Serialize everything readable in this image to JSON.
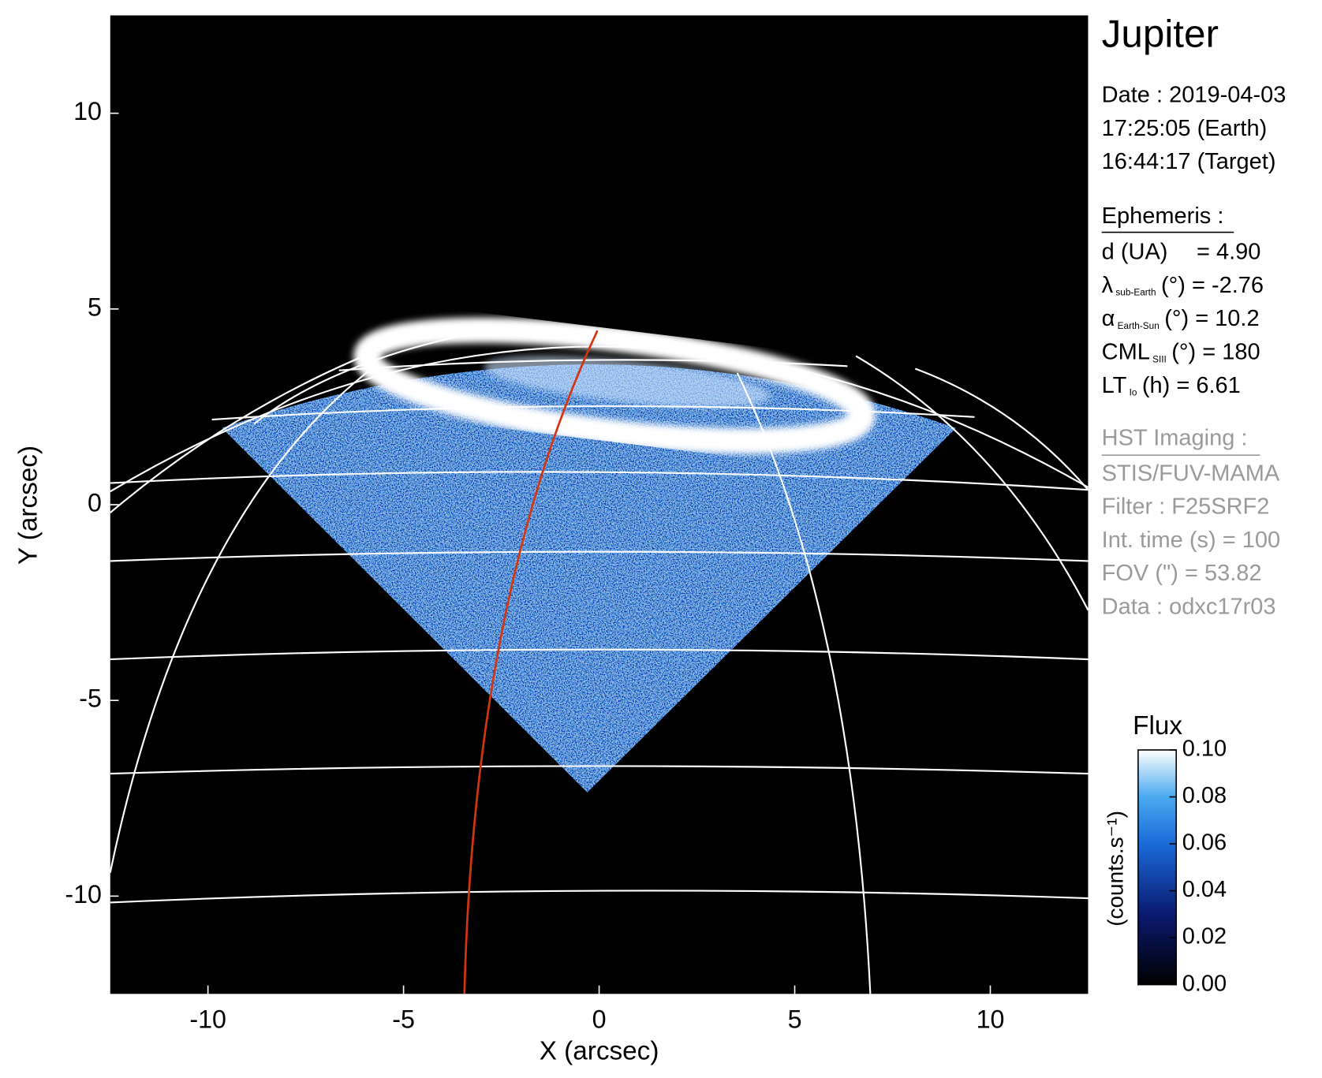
{
  "chart_data": {
    "type": "image",
    "title": "Jupiter",
    "xlabel": "X (arcsec)",
    "ylabel": "Y (arcsec)",
    "xlim": [
      -12.5,
      12.5
    ],
    "ylim": [
      -12.5,
      12.5
    ],
    "xticks": [
      -10,
      -5,
      0,
      5,
      10
    ],
    "yticks": [
      -10,
      -5,
      0,
      5,
      10
    ],
    "colorbar": {
      "title": "Flux",
      "label": "(counts.s⁻¹)",
      "lim": [
        0,
        0.1
      ],
      "ticks": [
        {
          "value": 0,
          "label": "0.00"
        },
        {
          "value": 0.02,
          "label": "0.02"
        },
        {
          "value": 0.04,
          "label": "0.04"
        },
        {
          "value": 0.06,
          "label": "0.06"
        },
        {
          "value": 0.08,
          "label": "0.08"
        },
        {
          "value": 0.1,
          "label": "0.10"
        }
      ]
    },
    "info": {
      "date": "Date : 2019-04-03",
      "earth_time": "17:25:05 (Earth)",
      "target_time": "16:44:17 (Target)",
      "ephemeris_title": "Ephemeris :",
      "ephemeris": [
        {
          "name": "d (UA)",
          "rest": "= 4.90"
        },
        {
          "name": "λ",
          "sub": "sub-Earth",
          "rest": "(°) = -2.76"
        },
        {
          "name": "α",
          "sub": "Earth-Sun",
          "rest": "(°) = 10.2"
        },
        {
          "name": "CML",
          "sub": "SIII",
          "rest": "(°) = 180"
        },
        {
          "name": "LT",
          "sub": "Io",
          "rest": "(h) = 6.61"
        }
      ],
      "hst_title": "HST Imaging :",
      "hst": [
        "STIS/FUV-MAMA",
        "Filter : F25SRF2",
        "Int. time (s) = 100",
        "FOV (\") = 53.82",
        "Data : odxc17r03"
      ]
    }
  }
}
